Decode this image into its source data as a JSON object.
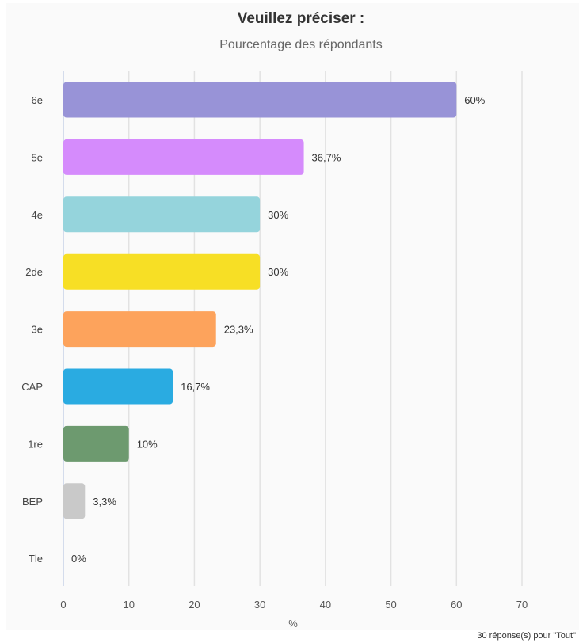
{
  "chart_data": {
    "type": "bar",
    "orientation": "horizontal",
    "title": "Veuillez préciser :",
    "subtitle": "Pourcentage des répondants",
    "categories": [
      "6e",
      "5e",
      "4e",
      "2de",
      "3e",
      "CAP",
      "1re",
      "BEP",
      "Tle"
    ],
    "values": [
      60,
      36.7,
      30,
      30,
      23.3,
      16.7,
      10,
      3.3,
      0
    ],
    "value_labels": [
      "60%",
      "36,7%",
      "30%",
      "30%",
      "23,3%",
      "16,7%",
      "10%",
      "3,3%",
      "0%"
    ],
    "colors": [
      "#9893d7",
      "#d58bfc",
      "#95d4dc",
      "#f7df25",
      "#fda35c",
      "#2aabe1",
      "#6d9a6f",
      "#c9c9c9",
      "#c9c9c9"
    ],
    "xlabel": "%",
    "ylabel": "",
    "xlim": [
      0,
      70
    ],
    "xticks": [
      "0",
      "10",
      "20",
      "30",
      "40",
      "50",
      "60",
      "70"
    ],
    "grid": true,
    "footer": "30 réponse(s) pour \"Tout\""
  }
}
